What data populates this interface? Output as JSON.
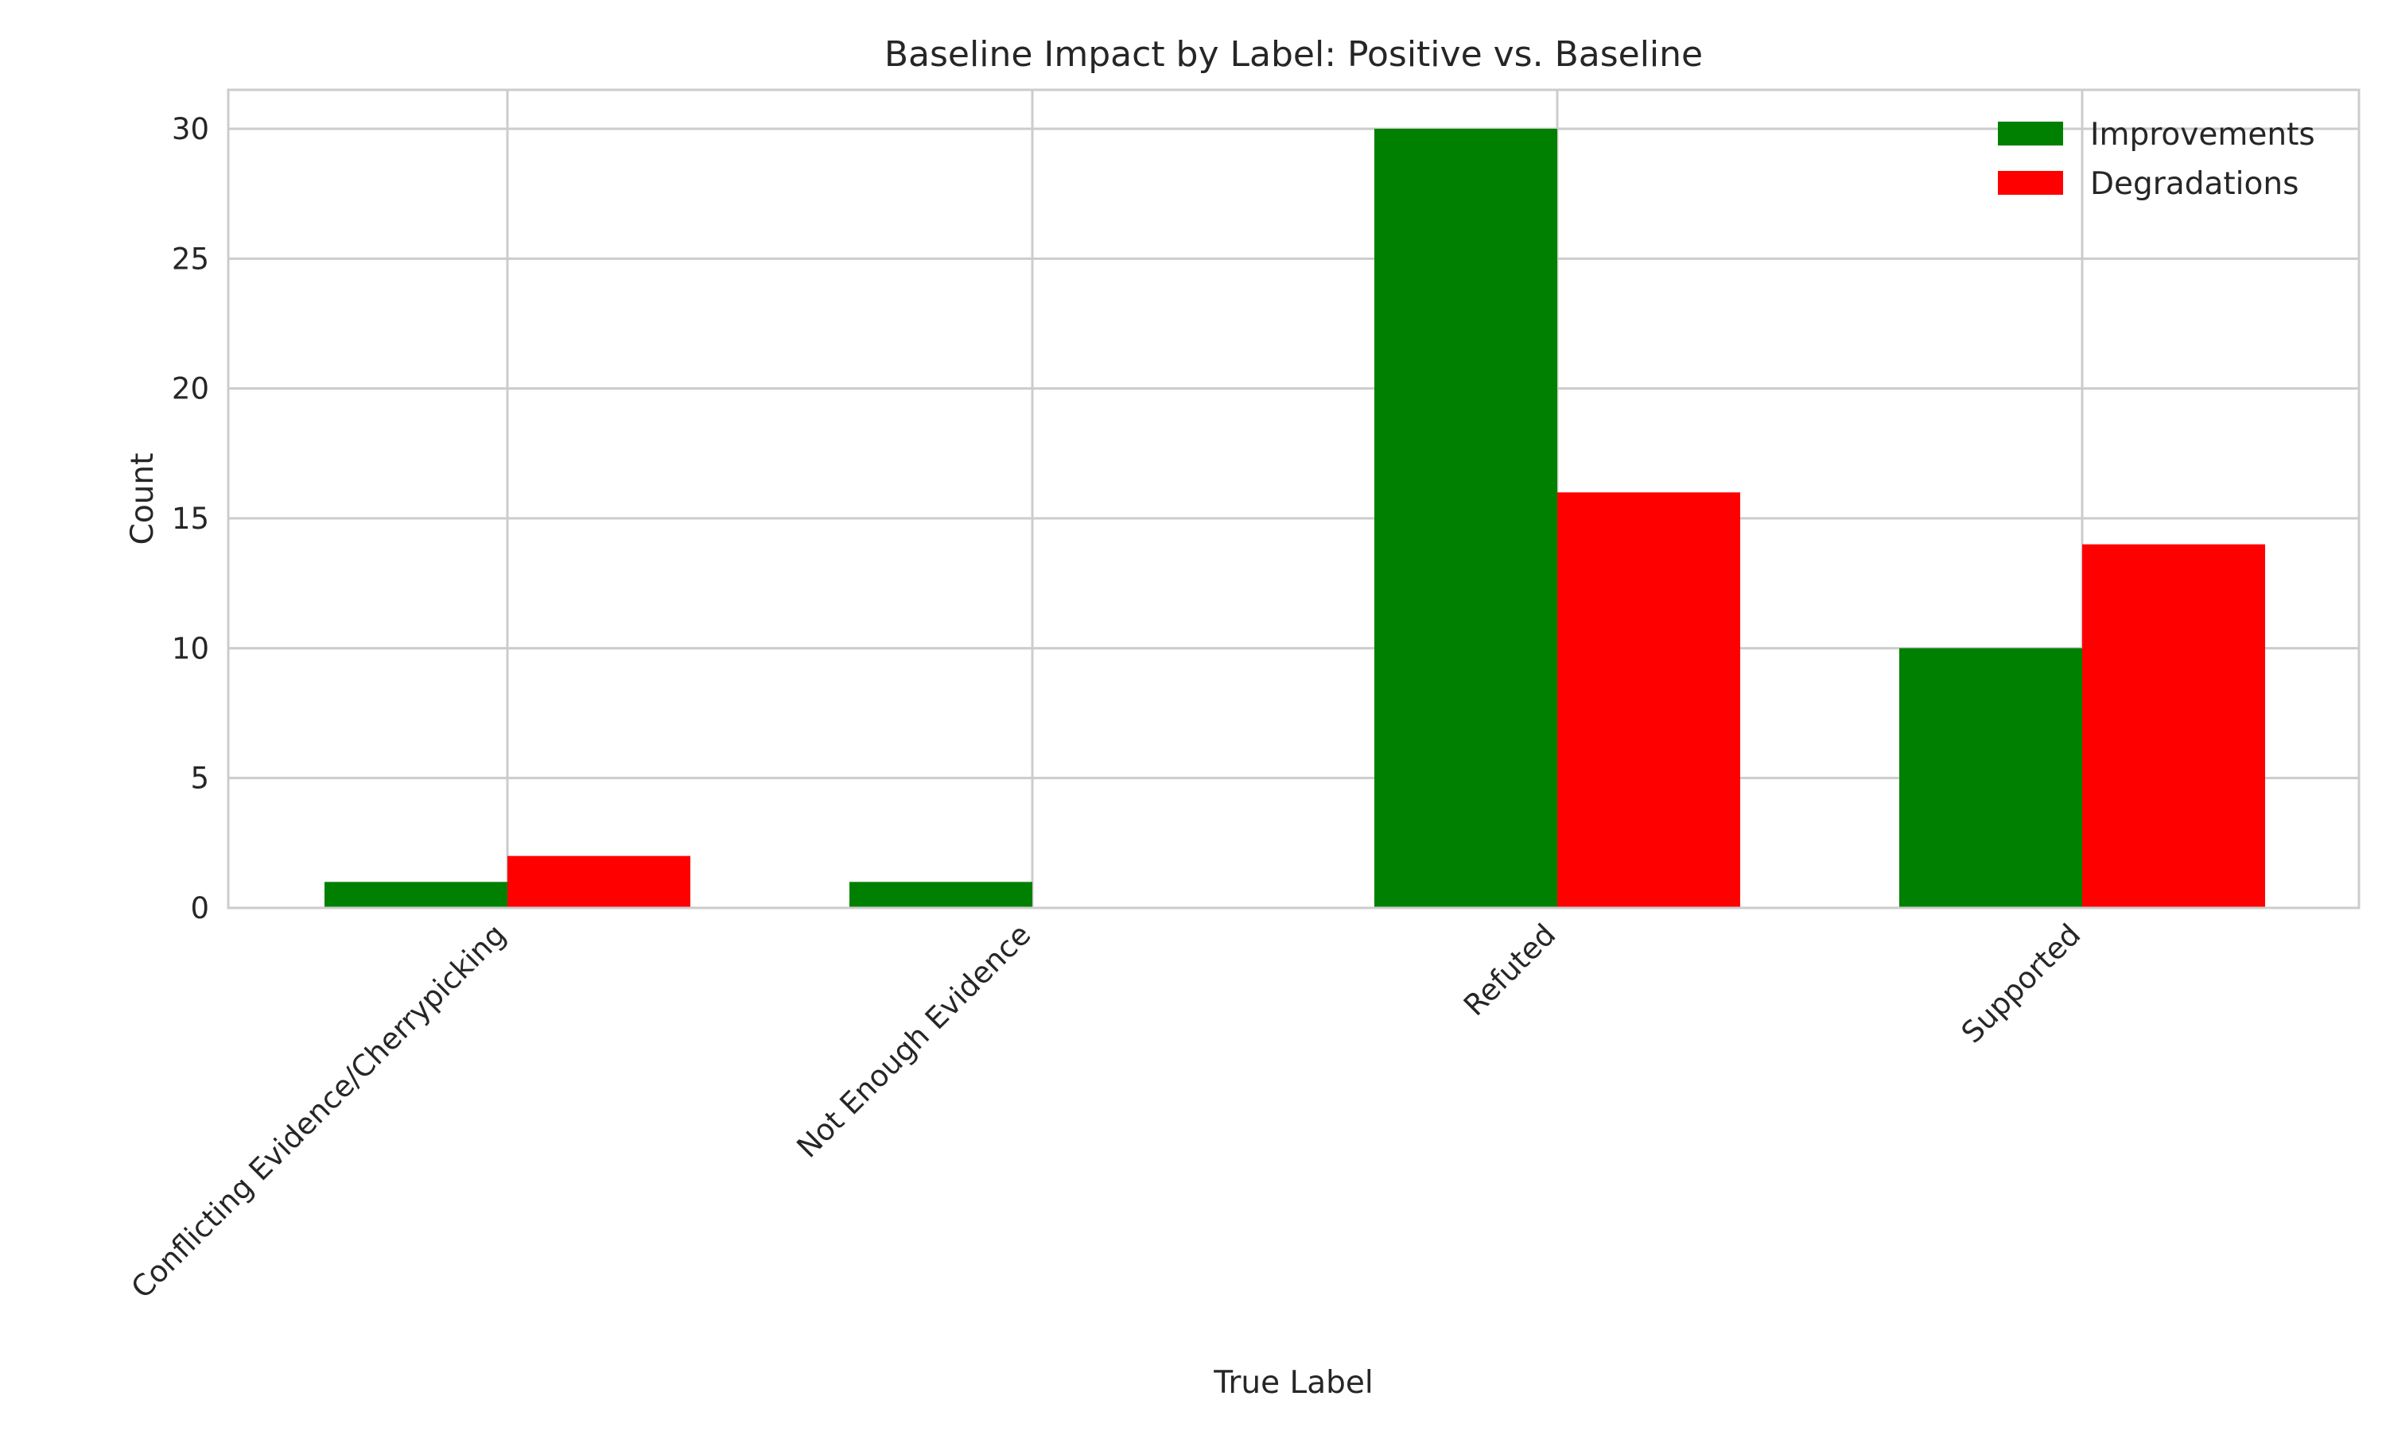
{
  "chart_data": {
    "type": "bar",
    "title": "Baseline Impact by Label: Positive vs. Baseline",
    "xlabel": "True Label",
    "ylabel": "Count",
    "categories": [
      "Conflicting Evidence/Cherrypicking",
      "Not Enough Evidence",
      "Refuted",
      "Supported"
    ],
    "series": [
      {
        "name": "Improvements",
        "values": [
          1,
          1,
          30,
          10
        ],
        "color": "#008000"
      },
      {
        "name": "Degradations",
        "values": [
          2,
          0,
          16,
          14
        ],
        "color": "#ff0000"
      }
    ],
    "ylim": [
      0,
      31.5
    ],
    "yticks": [
      0,
      5,
      10,
      15,
      20,
      25,
      30
    ],
    "grid": true,
    "legend_position": "top-right",
    "xtick_rotation": -45
  }
}
